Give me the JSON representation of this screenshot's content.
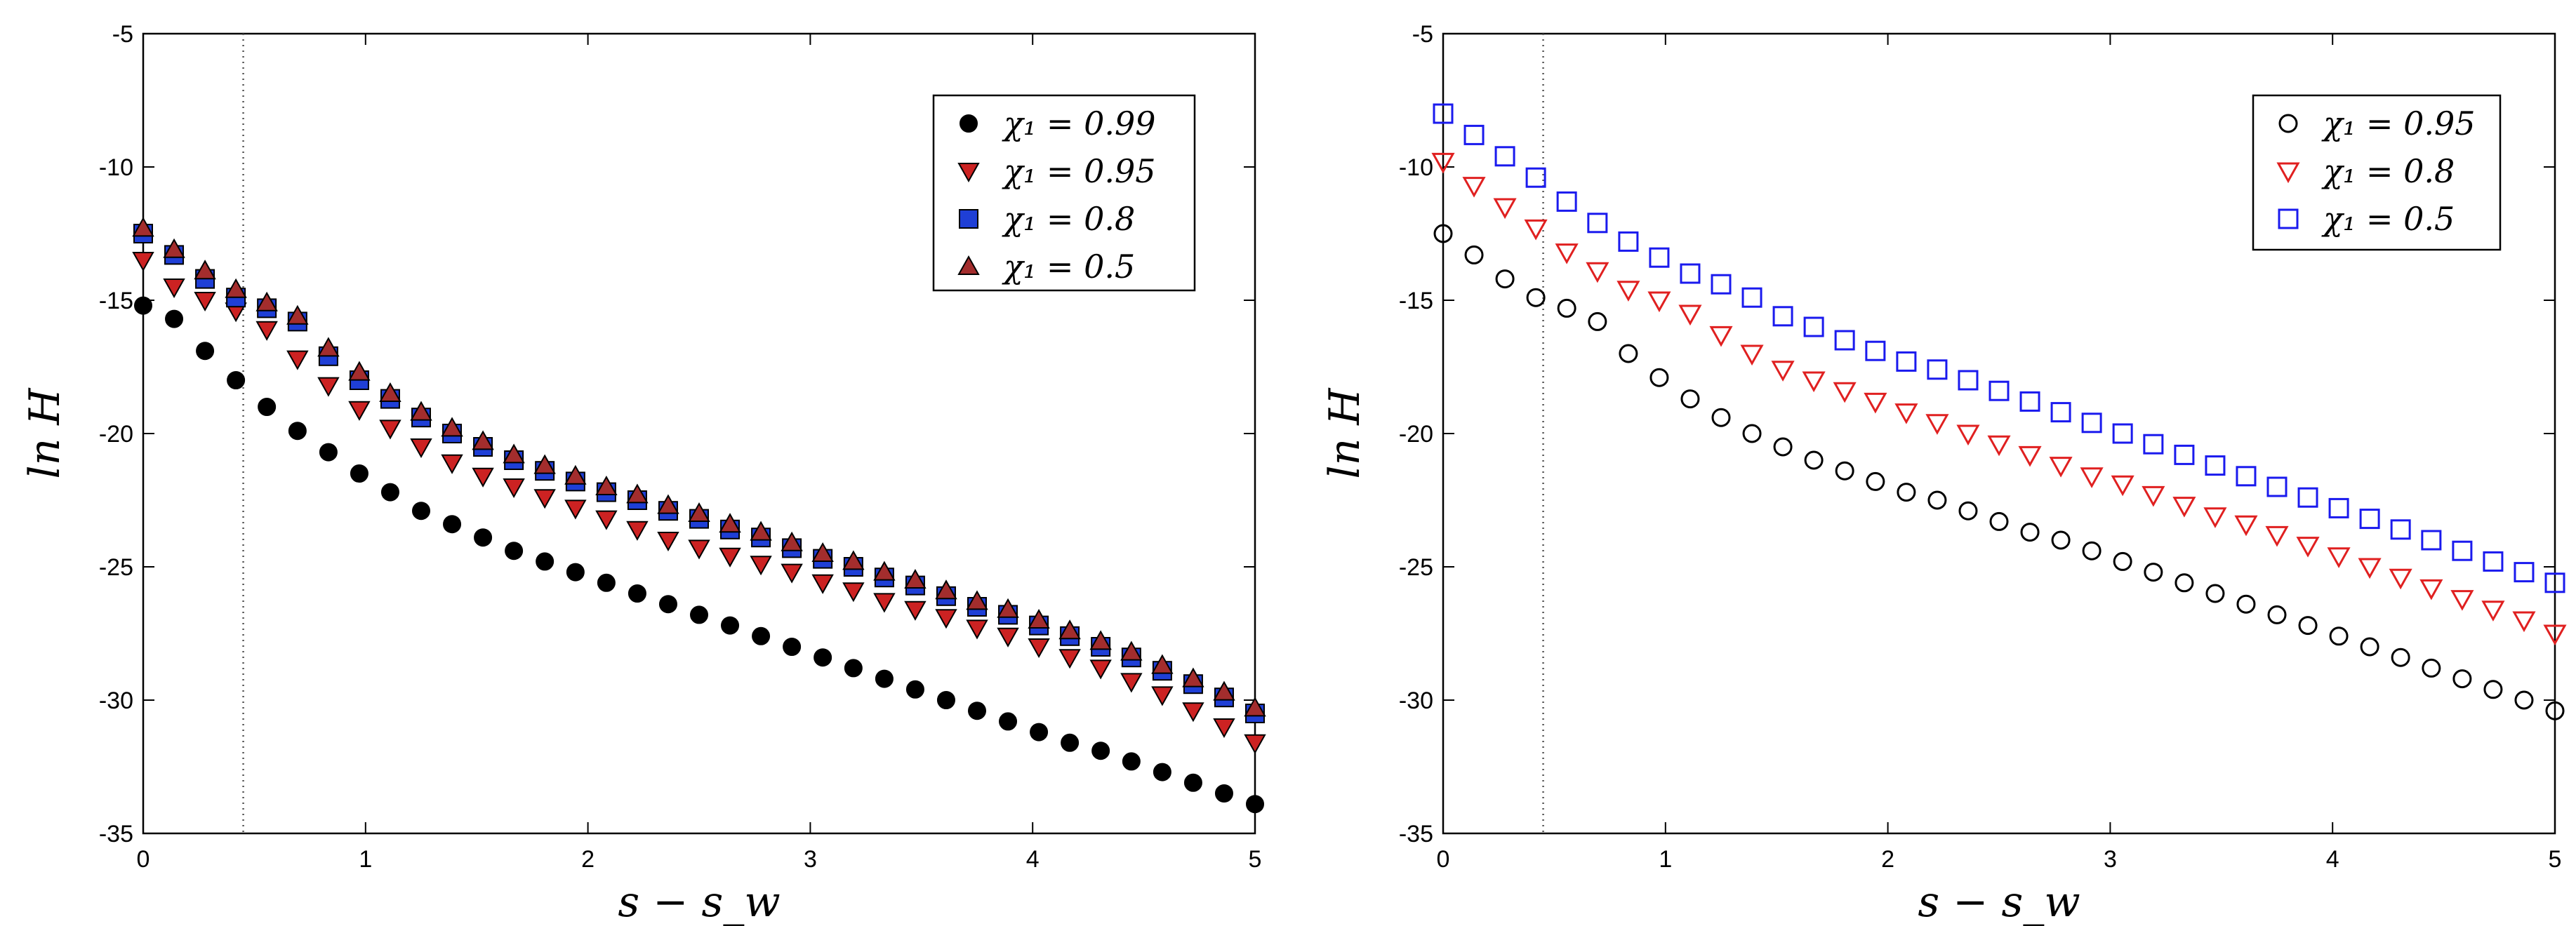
{
  "chart_data": [
    {
      "type": "scatter",
      "title": "",
      "xlabel": "s − s_w",
      "ylabel": "ln H",
      "xlim": [
        0,
        5
      ],
      "ylim": [
        -35,
        -5
      ],
      "xticks": [
        0,
        1,
        2,
        3,
        4,
        5
      ],
      "yticks": [
        -35,
        -30,
        -25,
        -20,
        -15,
        -10,
        -5
      ],
      "vline": 0.45,
      "legend_position": "top-right",
      "x": [
        0,
        0.139,
        0.278,
        0.417,
        0.556,
        0.694,
        0.833,
        0.972,
        1.111,
        1.25,
        1.389,
        1.528,
        1.667,
        1.806,
        1.944,
        2.083,
        2.222,
        2.361,
        2.5,
        2.639,
        2.778,
        2.917,
        3.056,
        3.194,
        3.333,
        3.472,
        3.611,
        3.75,
        3.889,
        4.028,
        4.167,
        4.306,
        4.444,
        4.583,
        4.722,
        4.861,
        5.0
      ],
      "series": [
        {
          "name": "χ₁ = 0.99",
          "marker": "filled-circle",
          "color": "#000000",
          "values": [
            -15.2,
            -15.7,
            -16.9,
            -18.0,
            -19.0,
            -19.9,
            -20.7,
            -21.5,
            -22.2,
            -22.9,
            -23.4,
            -23.9,
            -24.4,
            -24.8,
            -25.2,
            -25.6,
            -26.0,
            -26.4,
            -26.8,
            -27.2,
            -27.6,
            -28.0,
            -28.4,
            -28.8,
            -29.2,
            -29.6,
            -30.0,
            -30.4,
            -30.8,
            -31.2,
            -31.6,
            -31.9,
            -32.3,
            -32.7,
            -33.1,
            -33.5,
            -33.9
          ]
        },
        {
          "name": "χ₁ = 0.95",
          "marker": "filled-triangle-down",
          "color": "#cc2222",
          "values": [
            -13.5,
            -14.5,
            -15.0,
            -15.4,
            -16.1,
            -17.2,
            -18.2,
            -19.1,
            -19.8,
            -20.5,
            -21.1,
            -21.6,
            -22.0,
            -22.4,
            -22.8,
            -23.2,
            -23.6,
            -24.0,
            -24.3,
            -24.6,
            -24.9,
            -25.2,
            -25.6,
            -25.9,
            -26.3,
            -26.6,
            -26.9,
            -27.3,
            -27.6,
            -28.0,
            -28.4,
            -28.8,
            -29.3,
            -29.8,
            -30.4,
            -31.0,
            -31.6
          ]
        },
        {
          "name": "χ₁ = 0.8",
          "marker": "filled-square",
          "color": "#1f3fd6",
          "values": [
            -12.5,
            -13.3,
            -14.2,
            -14.9,
            -15.3,
            -15.8,
            -17.1,
            -18.0,
            -18.7,
            -19.4,
            -20.0,
            -20.5,
            -21.0,
            -21.4,
            -21.8,
            -22.2,
            -22.5,
            -22.9,
            -23.2,
            -23.6,
            -23.9,
            -24.3,
            -24.7,
            -25.0,
            -25.4,
            -25.7,
            -26.1,
            -26.5,
            -26.8,
            -27.2,
            -27.6,
            -28.0,
            -28.4,
            -28.9,
            -29.4,
            -29.9,
            -30.5
          ]
        },
        {
          "name": "χ₁ = 0.5",
          "marker": "filled-triangle-up",
          "color": "#a32d2d",
          "values": [
            -12.3,
            -13.1,
            -13.9,
            -14.6,
            -15.1,
            -15.6,
            -16.8,
            -17.7,
            -18.5,
            -19.2,
            -19.8,
            -20.3,
            -20.8,
            -21.2,
            -21.6,
            -22.0,
            -22.3,
            -22.7,
            -23.0,
            -23.4,
            -23.7,
            -24.1,
            -24.5,
            -24.8,
            -25.2,
            -25.5,
            -25.9,
            -26.3,
            -26.6,
            -27.0,
            -27.4,
            -27.8,
            -28.2,
            -28.7,
            -29.2,
            -29.7,
            -30.3
          ]
        }
      ]
    },
    {
      "type": "scatter",
      "title": "",
      "xlabel": "s − s_w",
      "ylabel": "ln H",
      "xlim": [
        0,
        5
      ],
      "ylim": [
        -35,
        -5
      ],
      "xticks": [
        0,
        1,
        2,
        3,
        4,
        5
      ],
      "yticks": [
        -35,
        -30,
        -25,
        -20,
        -15,
        -10,
        -5
      ],
      "vline": 0.45,
      "legend_position": "top-right",
      "x": [
        0,
        0.139,
        0.278,
        0.417,
        0.556,
        0.694,
        0.833,
        0.972,
        1.111,
        1.25,
        1.389,
        1.528,
        1.667,
        1.806,
        1.944,
        2.083,
        2.222,
        2.361,
        2.5,
        2.639,
        2.778,
        2.917,
        3.056,
        3.194,
        3.333,
        3.472,
        3.611,
        3.75,
        3.889,
        4.028,
        4.167,
        4.306,
        4.444,
        4.583,
        4.722,
        4.861,
        5.0
      ],
      "series": [
        {
          "name": "χ₁ = 0.95",
          "marker": "open-circle",
          "color": "#000000",
          "values": [
            -12.5,
            -13.3,
            -14.2,
            -14.9,
            -15.3,
            -15.8,
            -17.0,
            -17.9,
            -18.7,
            -19.4,
            -20.0,
            -20.5,
            -21.0,
            -21.4,
            -21.8,
            -22.2,
            -22.5,
            -22.9,
            -23.3,
            -23.7,
            -24.0,
            -24.4,
            -24.8,
            -25.2,
            -25.6,
            -26.0,
            -26.4,
            -26.8,
            -27.2,
            -27.6,
            -28.0,
            -28.4,
            -28.8,
            -29.2,
            -29.6,
            -30.0,
            -30.4
          ]
        },
        {
          "name": "χ₁ = 0.8",
          "marker": "open-triangle-down",
          "color": "#e02020",
          "values": [
            -9.8,
            -10.7,
            -11.5,
            -12.3,
            -13.2,
            -13.9,
            -14.6,
            -15.0,
            -15.5,
            -16.3,
            -17.0,
            -17.6,
            -18.0,
            -18.4,
            -18.8,
            -19.2,
            -19.6,
            -20.0,
            -20.4,
            -20.8,
            -21.2,
            -21.6,
            -21.9,
            -22.3,
            -22.7,
            -23.1,
            -23.4,
            -23.8,
            -24.2,
            -24.6,
            -25.0,
            -25.4,
            -25.8,
            -26.2,
            -26.6,
            -27.0,
            -27.5
          ]
        },
        {
          "name": "χ₁ = 0.5",
          "marker": "open-square",
          "color": "#1a1aee",
          "values": [
            -8.0,
            -8.8,
            -9.6,
            -10.4,
            -11.3,
            -12.1,
            -12.8,
            -13.4,
            -14.0,
            -14.4,
            -14.9,
            -15.6,
            -16.0,
            -16.5,
            -16.9,
            -17.3,
            -17.6,
            -18.0,
            -18.4,
            -18.8,
            -19.2,
            -19.6,
            -20.0,
            -20.4,
            -20.8,
            -21.2,
            -21.6,
            -22.0,
            -22.4,
            -22.8,
            -23.2,
            -23.6,
            -24.0,
            -24.4,
            -24.8,
            -25.2,
            -25.6
          ]
        }
      ]
    }
  ]
}
